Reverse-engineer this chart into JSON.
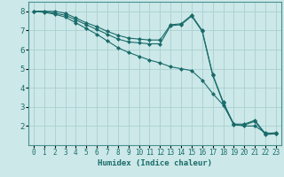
{
  "title": "",
  "xlabel": "Humidex (Indice chaleur)",
  "ylabel": "",
  "background_color": "#cce8e8",
  "grid_color": "#aacfcf",
  "line_color": "#1a6b6b",
  "xlim": [
    -0.5,
    23.5
  ],
  "ylim": [
    1.0,
    8.5
  ],
  "x": [
    0,
    1,
    2,
    3,
    4,
    5,
    6,
    7,
    8,
    9,
    10,
    11,
    12,
    13,
    14,
    15,
    16,
    17,
    18,
    19,
    20,
    21,
    22,
    23
  ],
  "line1": [
    8.0,
    8.0,
    8.0,
    7.9,
    7.65,
    7.4,
    7.2,
    6.95,
    6.75,
    6.6,
    6.55,
    6.5,
    6.5,
    7.3,
    7.35,
    7.8,
    7.0,
    4.7,
    3.25,
    2.1,
    2.1,
    2.3,
    1.6,
    1.65
  ],
  "line2": [
    8.0,
    8.0,
    7.9,
    7.8,
    7.55,
    7.3,
    7.05,
    6.8,
    6.55,
    6.4,
    6.35,
    6.3,
    6.3,
    7.25,
    7.3,
    7.75,
    6.95,
    4.65,
    3.2,
    2.05,
    2.05,
    2.25,
    1.55,
    1.6
  ],
  "line3": [
    8.0,
    7.95,
    7.85,
    7.7,
    7.4,
    7.1,
    6.8,
    6.45,
    6.1,
    5.85,
    5.65,
    5.45,
    5.3,
    5.1,
    5.0,
    4.9,
    4.4,
    3.7,
    3.1,
    2.1,
    2.0,
    2.0,
    1.65,
    1.6
  ]
}
